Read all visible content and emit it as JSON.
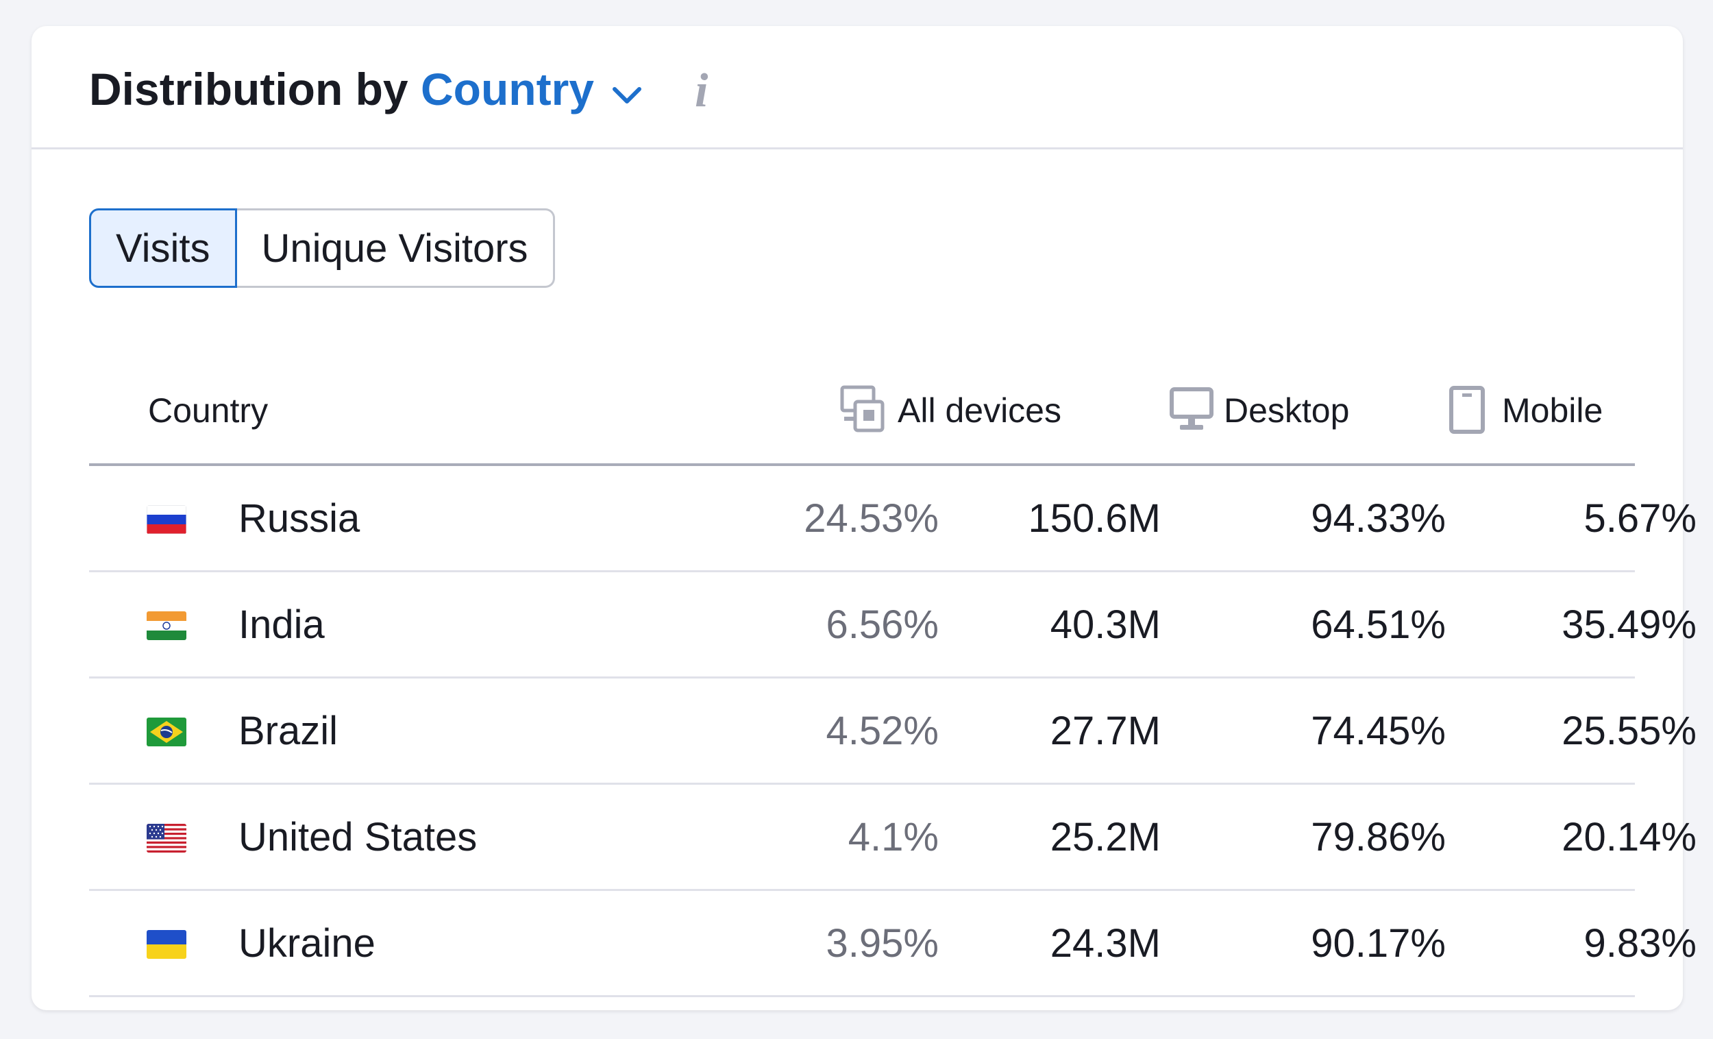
{
  "header": {
    "title_prefix": "Distribution by",
    "dimension": "Country"
  },
  "tabs": [
    {
      "label": "Visits",
      "active": true
    },
    {
      "label": "Unique Visitors",
      "active": false
    }
  ],
  "table": {
    "columns": {
      "country": "Country",
      "all_devices": "All devices",
      "desktop": "Desktop",
      "mobile": "Mobile"
    },
    "rows": [
      {
        "country": "Russia",
        "flag": "ru-flag",
        "share": "24.53%",
        "all_devices": "150.6M",
        "desktop": "94.33%",
        "mobile": "5.67%"
      },
      {
        "country": "India",
        "flag": "in-flag",
        "share": "6.56%",
        "all_devices": "40.3M",
        "desktop": "64.51%",
        "mobile": "35.49%"
      },
      {
        "country": "Brazil",
        "flag": "br-flag",
        "share": "4.52%",
        "all_devices": "27.7M",
        "desktop": "74.45%",
        "mobile": "25.55%"
      },
      {
        "country": "United States",
        "flag": "us-flag",
        "share": "4.1%",
        "all_devices": "25.2M",
        "desktop": "79.86%",
        "mobile": "20.14%"
      },
      {
        "country": "Ukraine",
        "flag": "ua-flag",
        "share": "3.95%",
        "all_devices": "24.3M",
        "desktop": "90.17%",
        "mobile": "9.83%"
      }
    ]
  },
  "colors": {
    "accent": "#1d6fcc",
    "active_tab_bg": "#e6f0ff",
    "muted_text": "#6c6e79",
    "icon_gray": "#a3a6b3"
  }
}
